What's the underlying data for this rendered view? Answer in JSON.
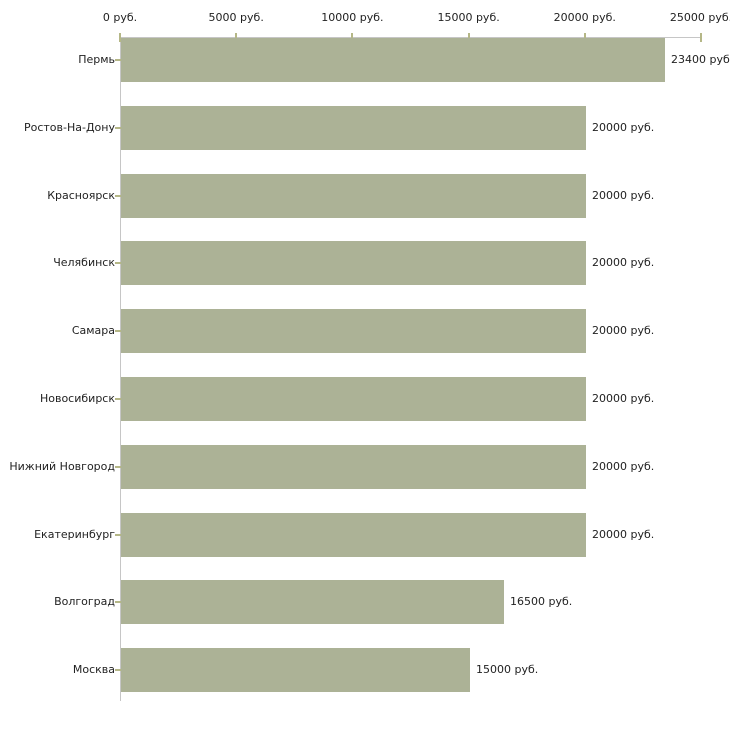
{
  "chart_data": {
    "type": "bar",
    "orientation": "horizontal",
    "title": "",
    "xlabel": "",
    "ylabel": "",
    "unit": "руб.",
    "xlim": [
      0,
      25000
    ],
    "x_ticks": [
      0,
      5000,
      10000,
      15000,
      20000,
      25000
    ],
    "x_tick_labels": [
      "0 руб.",
      "5000 руб.",
      "10000 руб.",
      "15000 руб.",
      "20000 руб.",
      "25000 руб."
    ],
    "categories": [
      "Пермь",
      "Ростов-На-Дону",
      "Красноярск",
      "Челябинск",
      "Самара",
      "Новосибирск",
      "Нижний Новгород",
      "Екатеринбург",
      "Волгоград",
      "Москва"
    ],
    "values": [
      23400,
      20000,
      20000,
      20000,
      20000,
      20000,
      20000,
      20000,
      16500,
      15000
    ],
    "value_labels": [
      "23400 руб.",
      "20000 руб.",
      "20000 руб.",
      "20000 руб.",
      "20000 руб.",
      "20000 руб.",
      "20000 руб.",
      "20000 руб.",
      "16500 руб.",
      "15000 руб."
    ],
    "grid": false,
    "legend_position": "none",
    "axis_position": "top",
    "colors": {
      "bar": "#acb296",
      "axis_line": "#c6c6c6",
      "tick": "#b5b787",
      "text": "#222222",
      "background": "#ffffff"
    }
  }
}
